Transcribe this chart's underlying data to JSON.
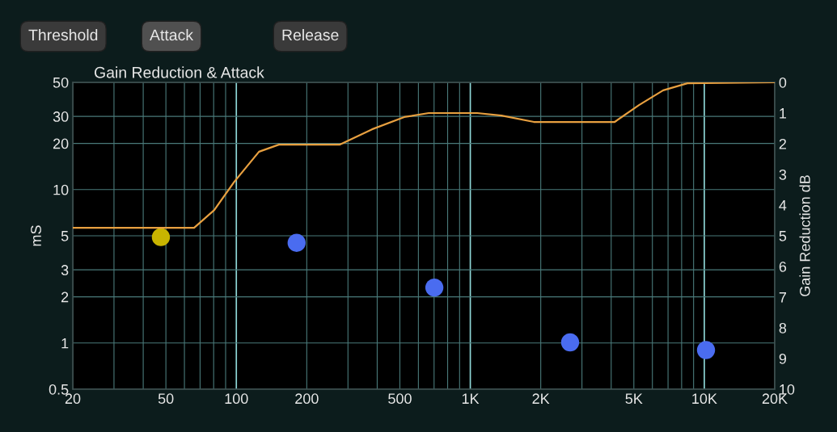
{
  "chart_data": {
    "type": "scatter",
    "title": "Gain Reduction & Attack",
    "annotations": [
      "Threshold",
      "Attack",
      "Release"
    ],
    "ylabel": "mS",
    "y2label": "Gain Reduction dB",
    "log": "xy",
    "grid": true,
    "legend": false,
    "marker": "circle",
    "xlim": [
      20,
      20000
    ],
    "xticks": [
      20,
      {
        "value": 30,
        "label": null
      },
      {
        "value": 40,
        "label": null
      },
      50,
      {
        "value": 60,
        "label": null
      },
      {
        "value": 70,
        "label": null
      },
      {
        "value": 80,
        "label": null
      },
      {
        "value": 90,
        "label": null
      },
      100,
      200,
      {
        "value": 300,
        "label": null
      },
      {
        "value": 400,
        "label": null
      },
      500,
      {
        "value": 600,
        "label": null
      },
      {
        "value": 700,
        "label": null
      },
      {
        "value": 800,
        "label": null
      },
      {
        "value": 900,
        "label": null
      },
      {
        "value": 1000,
        "label": "1K"
      },
      {
        "value": 2000,
        "label": "2K"
      },
      {
        "value": 3000,
        "label": null
      },
      {
        "value": 4000,
        "label": null
      },
      {
        "value": 5000,
        "label": "5K"
      },
      {
        "value": 6000,
        "label": null
      },
      {
        "value": 7000,
        "label": null
      },
      {
        "value": 8000,
        "label": null
      },
      {
        "value": 9000,
        "label": null
      },
      {
        "value": 10000,
        "label": "10K"
      },
      {
        "value": 20000,
        "label": "20K"
      }
    ],
    "ylim": [
      0.5,
      50
    ],
    "yticks": [
      0.5,
      1,
      2,
      3,
      5,
      10,
      20,
      30,
      50
    ],
    "y2lim": [
      10,
      0
    ],
    "y2ticks": [
      0,
      1,
      2,
      3,
      4,
      5,
      6,
      7,
      8,
      9,
      10
    ],
    "series": [
      {
        "x": [
          47.6,
          181,
          702,
          2670,
          10170
        ],
        "values": [
          4.9,
          4.5,
          2.3,
          1.01,
          0.9
        ],
        "colors": [
          "#c8b400",
          "#4a6cf0",
          "#4a6cf0",
          "#4a6cf0",
          "#4a6cf0"
        ]
      },
      {
        "type": "line",
        "axis": "y2",
        "color": "#e8a040",
        "marker": "none",
        "line_style": "solid",
        "x": [
          20,
          66,
          80.5,
          98,
          125,
          152,
          276,
          380,
          522,
          664,
          1070,
          1360,
          1870,
          4140,
          5260,
          6670,
          8470,
          20000
        ],
        "values": [
          4.74,
          4.74,
          4.16,
          3.24,
          2.26,
          2.03,
          2.03,
          1.53,
          1.13,
          1.0,
          1.0,
          1.08,
          1.29,
          1.29,
          0.74,
          0.26,
          0.03,
          0
        ]
      }
    ]
  }
}
